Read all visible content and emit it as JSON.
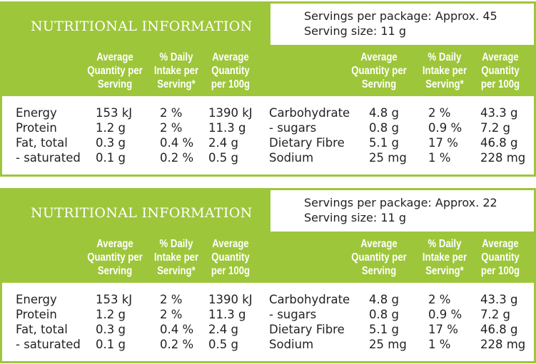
{
  "colors": {
    "brand_green": "#9dc63a"
  },
  "column_headers": [
    "Average Quantity per Serving",
    "% Daily Intake per Serving*",
    "Average Quantity per 100g"
  ],
  "column_header_lines": [
    [
      "Average",
      "Quantity per",
      "Serving"
    ],
    [
      "% Daily",
      "Intake per",
      "Serving*"
    ],
    [
      "Average",
      "Quantity",
      "per 100g"
    ]
  ],
  "panels": [
    {
      "title": "NUTRITIONAL INFORMATION",
      "servings_per_package": "Servings per package: Approx. 45",
      "serving_size": "Serving size: 11 g",
      "left_rows": [
        [
          "Energy",
          "153 kJ",
          "2 %",
          "1390 kJ"
        ],
        [
          "Protein",
          "1.2 g",
          "2 %",
          "11.3 g"
        ],
        [
          "Fat, total",
          "0.3 g",
          "0.4 %",
          "2.4 g"
        ],
        [
          "- saturated",
          "0.1 g",
          "0.2 %",
          "0.5 g"
        ]
      ],
      "right_rows": [
        [
          "Carbohydrate",
          "4.8 g",
          "2 %",
          "43.3 g"
        ],
        [
          "- sugars",
          "0.8 g",
          "0.9 %",
          "7.2 g"
        ],
        [
          "Dietary Fibre",
          "5.1 g",
          "17 %",
          "46.8 g"
        ],
        [
          "Sodium",
          "25 mg",
          "1 %",
          "228 mg"
        ]
      ]
    },
    {
      "title": "NUTRITIONAL INFORMATION",
      "servings_per_package": "Servings per package: Approx. 22",
      "serving_size": "Serving size: 11 g",
      "left_rows": [
        [
          "Energy",
          "153 kJ",
          "2 %",
          "1390 kJ"
        ],
        [
          "Protein",
          "1.2 g",
          "2 %",
          "11.3 g"
        ],
        [
          "Fat, total",
          "0.3 g",
          "0.4 %",
          "2.4 g"
        ],
        [
          "- saturated",
          "0.1 g",
          "0.2 %",
          "0.5 g"
        ]
      ],
      "right_rows": [
        [
          "Carbohydrate",
          "4.8 g",
          "2 %",
          "43.3 g"
        ],
        [
          "- sugars",
          "0.8 g",
          "0.9 %",
          "7.2 g"
        ],
        [
          "Dietary Fibre",
          "5.1 g",
          "17 %",
          "46.8 g"
        ],
        [
          "Sodium",
          "25 mg",
          "1 %",
          "228 mg"
        ]
      ]
    }
  ]
}
